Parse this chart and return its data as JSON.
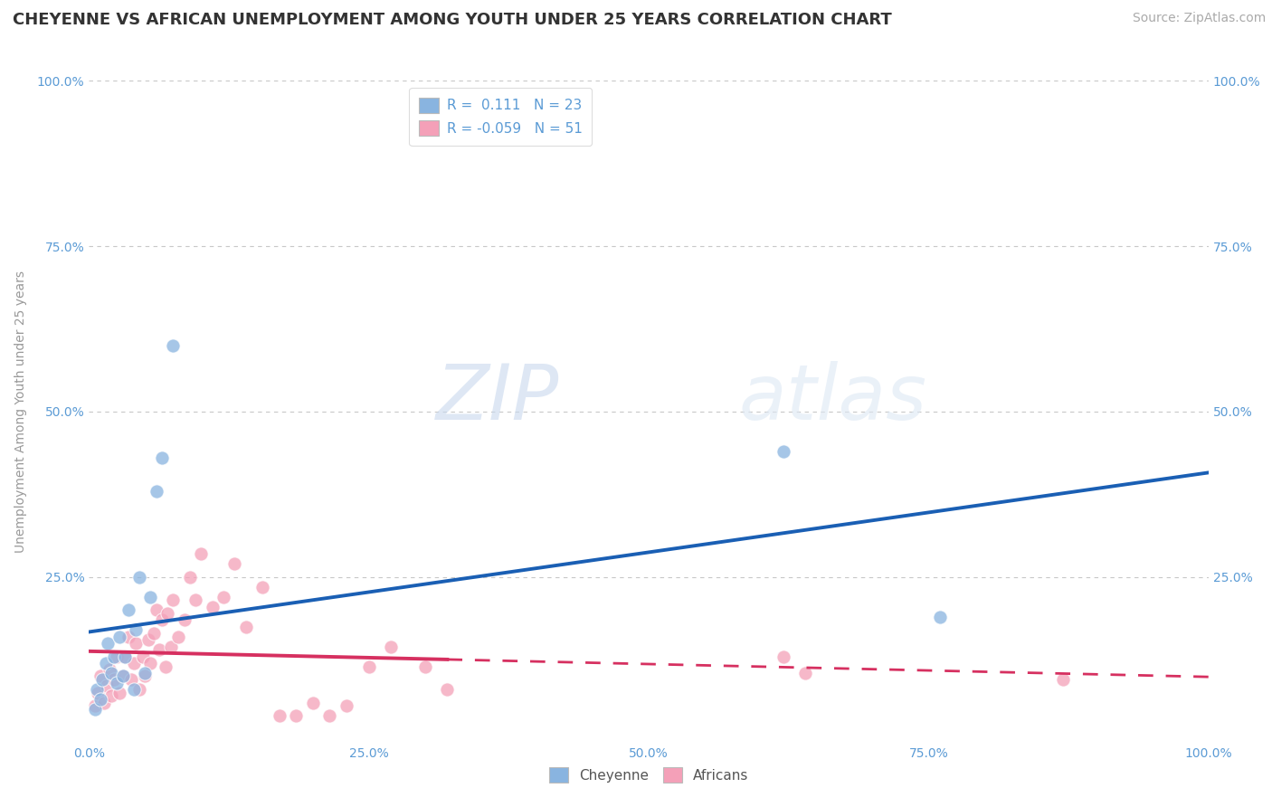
{
  "title": "CHEYENNE VS AFRICAN UNEMPLOYMENT AMONG YOUTH UNDER 25 YEARS CORRELATION CHART",
  "source": "Source: ZipAtlas.com",
  "ylabel": "Unemployment Among Youth under 25 years",
  "xlim": [
    0,
    1.0
  ],
  "ylim": [
    0,
    1.0
  ],
  "watermark_zip": "ZIP",
  "watermark_atlas": "atlas",
  "cheyenne_color": "#89b4e0",
  "africans_color": "#f4a0b8",
  "cheyenne_R": "0.111",
  "cheyenne_N": "23",
  "africans_R": "-0.059",
  "africans_N": "51",
  "cheyenne_line_color": "#1a5fb4",
  "africans_line_color": "#d63060",
  "cheyenne_x": [
    0.005,
    0.007,
    0.01,
    0.012,
    0.015,
    0.017,
    0.02,
    0.022,
    0.025,
    0.027,
    0.03,
    0.032,
    0.035,
    0.04,
    0.042,
    0.045,
    0.05,
    0.055,
    0.06,
    0.065,
    0.075,
    0.62,
    0.76
  ],
  "cheyenne_y": [
    0.05,
    0.08,
    0.065,
    0.095,
    0.12,
    0.15,
    0.105,
    0.13,
    0.09,
    0.16,
    0.1,
    0.13,
    0.2,
    0.08,
    0.17,
    0.25,
    0.105,
    0.22,
    0.38,
    0.43,
    0.6,
    0.44,
    0.19
  ],
  "africans_x": [
    0.005,
    0.008,
    0.01,
    0.013,
    0.016,
    0.018,
    0.02,
    0.022,
    0.025,
    0.027,
    0.03,
    0.032,
    0.035,
    0.038,
    0.04,
    0.042,
    0.045,
    0.048,
    0.05,
    0.053,
    0.055,
    0.058,
    0.06,
    0.063,
    0.065,
    0.068,
    0.07,
    0.073,
    0.075,
    0.08,
    0.085,
    0.09,
    0.095,
    0.1,
    0.11,
    0.12,
    0.13,
    0.14,
    0.155,
    0.17,
    0.185,
    0.2,
    0.215,
    0.23,
    0.25,
    0.27,
    0.3,
    0.32,
    0.62,
    0.64,
    0.87
  ],
  "africans_y": [
    0.055,
    0.075,
    0.1,
    0.06,
    0.085,
    0.11,
    0.07,
    0.095,
    0.13,
    0.075,
    0.1,
    0.13,
    0.16,
    0.095,
    0.12,
    0.15,
    0.08,
    0.13,
    0.1,
    0.155,
    0.12,
    0.165,
    0.2,
    0.14,
    0.185,
    0.115,
    0.195,
    0.145,
    0.215,
    0.16,
    0.185,
    0.25,
    0.215,
    0.285,
    0.205,
    0.22,
    0.27,
    0.175,
    0.235,
    0.04,
    0.04,
    0.06,
    0.04,
    0.055,
    0.115,
    0.145,
    0.115,
    0.08,
    0.13,
    0.105,
    0.095
  ],
  "grid_color": "#c8c8c8",
  "background_color": "#ffffff",
  "title_fontsize": 13,
  "axis_label_fontsize": 10,
  "tick_fontsize": 10,
  "legend_fontsize": 11,
  "source_fontsize": 10,
  "africans_solid_cutoff": 0.32
}
